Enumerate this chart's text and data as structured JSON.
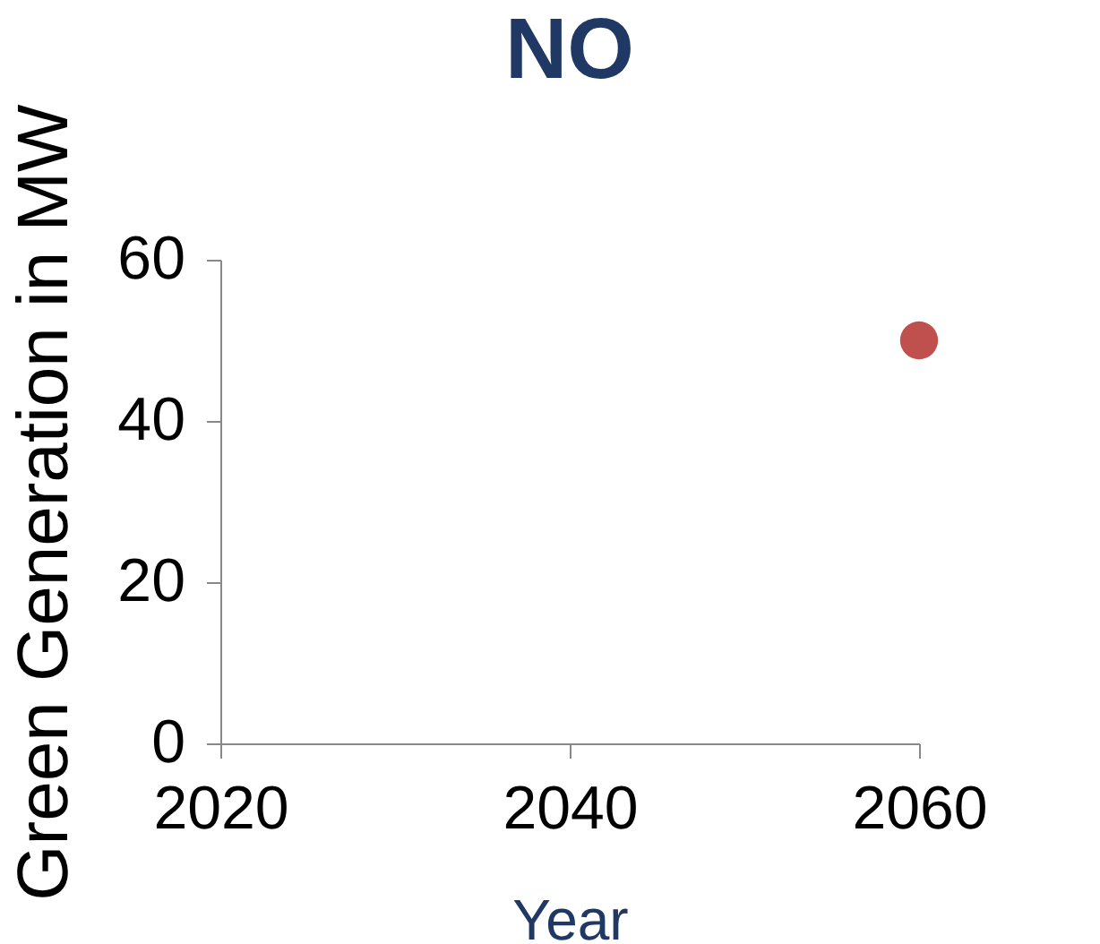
{
  "chart_data": {
    "type": "scatter",
    "title": "NO",
    "xlabel": "Year",
    "ylabel": "Green Generation in MW",
    "x": [
      2060
    ],
    "series": [
      {
        "color": "#c0504d",
        "values": [
          50
        ]
      }
    ],
    "xlim": [
      2020,
      2060
    ],
    "xticks": [
      2020,
      2040,
      2060
    ],
    "ylim": [
      0,
      60
    ],
    "yticks": [
      0,
      20,
      40,
      60
    ],
    "grid": false,
    "legend": false,
    "marker": "circle"
  }
}
